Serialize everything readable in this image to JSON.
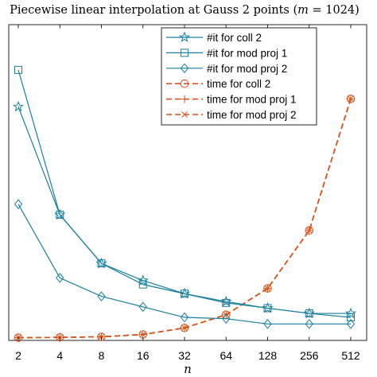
{
  "chart_data": {
    "type": "line",
    "title": "Piecewise linear interpolation at Gauss 2 points (m = 1024)",
    "xlabel": "n",
    "ylabel": "",
    "x_ticks": [
      "2",
      "4",
      "8",
      "16",
      "32",
      "64",
      "128",
      "256",
      "512"
    ],
    "x_values": [
      2,
      4,
      8,
      16,
      32,
      64,
      128,
      256,
      512
    ],
    "x_scale": "log2",
    "ylim": [
      0,
      100
    ],
    "y_ticks_visible": false,
    "grid": false,
    "legend_position": "top-right",
    "series": [
      {
        "name": "#it for coll 2",
        "color": "#1a7fa0",
        "dash": "solid",
        "marker": "star",
        "values": [
          88,
          47,
          28.5,
          22,
          17,
          14,
          11.5,
          9.5,
          9.5
        ]
      },
      {
        "name": "#it for mod proj 1",
        "color": "#1a7fa0",
        "dash": "solid",
        "marker": "square",
        "values": [
          102,
          47,
          28.5,
          20.5,
          17,
          13.5,
          11.5,
          9.5,
          8
        ]
      },
      {
        "name": "#it for mod proj 2",
        "color": "#1a7fa0",
        "dash": "solid",
        "marker": "diamond",
        "values": [
          51,
          23,
          16,
          12,
          8,
          7.5,
          5.5,
          5.5,
          5.5
        ]
      },
      {
        "name": "time for coll 2",
        "color": "#d9541a",
        "dash": "dashed",
        "marker": "circle",
        "values": [
          0.3,
          0.4,
          0.6,
          1.5,
          4,
          9,
          19,
          41,
          91
        ]
      },
      {
        "name": "time for mod proj 1",
        "color": "#d9541a",
        "dash": "dashed",
        "marker": "plus",
        "values": [
          0.3,
          0.4,
          0.6,
          1.5,
          4,
          9,
          19,
          41,
          91
        ]
      },
      {
        "name": "time for mod proj 2",
        "color": "#d9541a",
        "dash": "dashed",
        "marker": "x",
        "values": [
          0.3,
          0.4,
          0.6,
          1.5,
          4,
          9,
          19,
          41,
          91
        ]
      }
    ]
  }
}
